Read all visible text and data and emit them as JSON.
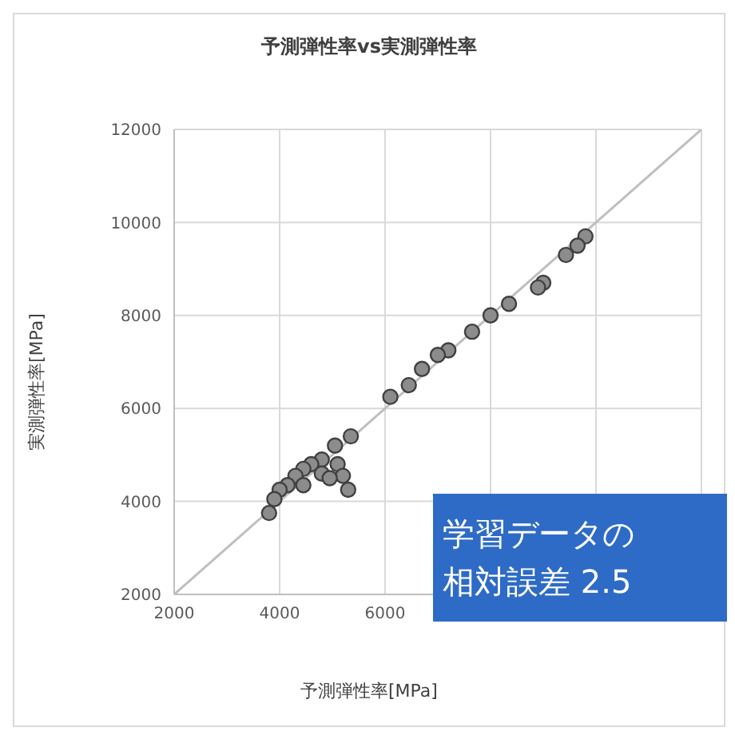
{
  "chart_data": {
    "type": "scatter",
    "title": "予測弾性率vs実測弾性率",
    "xlabel": "予測弾性率[MPa]",
    "ylabel": "実測弾性率[MPa]",
    "xlim": [
      2000,
      12000
    ],
    "xticks": [
      2000,
      4000,
      6000,
      {
        "value": 8000,
        "label": null
      },
      {
        "value": 10000,
        "label": null
      },
      {
        "value": 12000,
        "label": null
      }
    ],
    "ylim": [
      2000,
      12000
    ],
    "yticks": [
      2000,
      4000,
      6000,
      8000,
      10000,
      12000
    ],
    "grid": true,
    "marker": "circle",
    "annotations": [
      "学習データの",
      "相対誤差 2.5"
    ],
    "series": [
      {
        "type": "line",
        "marker": "none",
        "color": "#bfbfbf",
        "x": [
          2000,
          12000
        ],
        "values": [
          2000,
          12000
        ]
      },
      {
        "color": "#8c8c8c",
        "x": [
          9800,
          9650,
          9430,
          9000,
          8900,
          8350,
          8000,
          7650,
          7200,
          7000,
          6700,
          6450,
          6100,
          5350,
          5050,
          4800,
          4600,
          4450,
          4300,
          4150,
          4000,
          3900,
          3800,
          5100,
          5200,
          5300,
          4800,
          4950,
          4450
        ],
        "values": [
          9700,
          9500,
          9300,
          8700,
          8600,
          8250,
          8000,
          7650,
          7250,
          7150,
          6850,
          6500,
          6250,
          5400,
          5200,
          4900,
          4800,
          4700,
          4550,
          4350,
          4250,
          4050,
          3750,
          4800,
          4550,
          4250,
          4600,
          4500,
          4350
        ]
      }
    ]
  }
}
